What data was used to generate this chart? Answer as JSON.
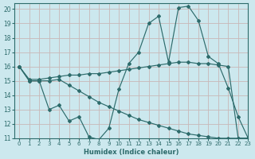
{
  "xlabel": "Humidex (Indice chaleur)",
  "bg_color": "#cce8ee",
  "grid_color": "#dddddd",
  "line_color": "#2d6b6b",
  "xlim": [
    -0.5,
    23
  ],
  "ylim": [
    11,
    20.4
  ],
  "xticks": [
    0,
    1,
    2,
    3,
    4,
    5,
    6,
    7,
    8,
    9,
    10,
    11,
    12,
    13,
    14,
    15,
    16,
    17,
    18,
    19,
    20,
    21,
    22,
    23
  ],
  "yticks": [
    11,
    12,
    13,
    14,
    15,
    16,
    17,
    18,
    19,
    20
  ],
  "line1_x": [
    0,
    1,
    2,
    3,
    4,
    5,
    6,
    7,
    8,
    9,
    10,
    11,
    12,
    13,
    14,
    15,
    16,
    17,
    18,
    19,
    20,
    21,
    22,
    23
  ],
  "line1_y": [
    16,
    15,
    15,
    13,
    13.3,
    12.2,
    12.5,
    11.1,
    10.9,
    11.7,
    14.4,
    16.2,
    17.0,
    19.0,
    19.5,
    16.3,
    20.1,
    20.2,
    19.2,
    16.7,
    16.2,
    14.5,
    12.5,
    11
  ],
  "line2_x": [
    0,
    1,
    2,
    3,
    4,
    5,
    6,
    7,
    8,
    9,
    10,
    11,
    12,
    13,
    14,
    15,
    16,
    17,
    18,
    19,
    20,
    21,
    22,
    23
  ],
  "line2_y": [
    16,
    15.1,
    15.1,
    15.2,
    15.3,
    15.4,
    15.4,
    15.5,
    15.5,
    15.6,
    15.7,
    15.8,
    15.9,
    16.0,
    16.1,
    16.2,
    16.3,
    16.3,
    16.2,
    16.2,
    16.1,
    16.0,
    11,
    11
  ],
  "line3_x": [
    0,
    1,
    2,
    3,
    4,
    5,
    6,
    7,
    8,
    9,
    10,
    11,
    12,
    13,
    14,
    15,
    16,
    17,
    18,
    19,
    20,
    21,
    22,
    23
  ],
  "line3_y": [
    16,
    15,
    15,
    15,
    15.1,
    14.7,
    14.3,
    13.9,
    13.5,
    13.2,
    12.9,
    12.6,
    12.3,
    12.1,
    11.9,
    11.7,
    11.5,
    11.3,
    11.2,
    11.1,
    11.0,
    11.0,
    11.0,
    11.0
  ]
}
